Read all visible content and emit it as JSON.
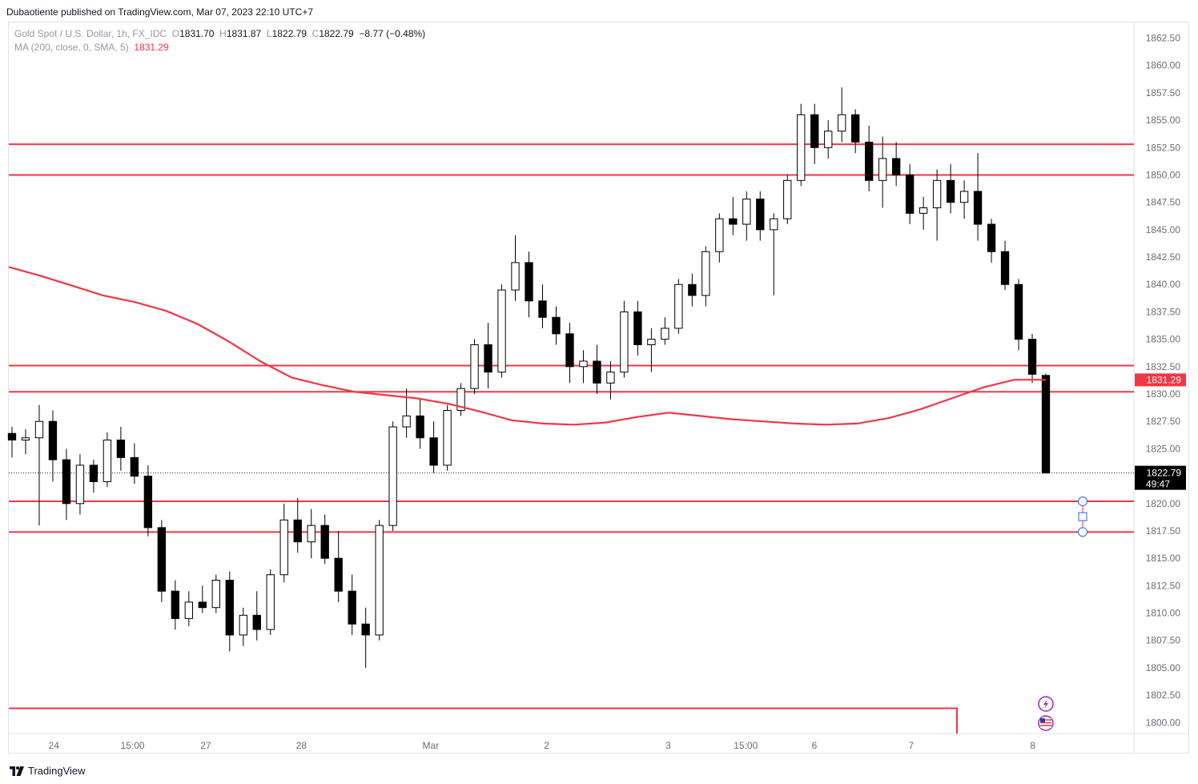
{
  "publisher_line": "Dubaotiente published on TradingView.com, Mar 07, 2023 22:10 UTC+7",
  "legend": {
    "symbol": "Gold Spot / U.S. Dollar, 1h, FX_IDC",
    "open_label": "O",
    "open": "1831.70",
    "high_label": "H",
    "high": "1831.87",
    "low_label": "L",
    "low": "1822.79",
    "close_label": "C",
    "close": "1822.79",
    "change": "−8.77 (−0.48%)",
    "ma_label": "MA (200, close, 0, SMA, 5)",
    "ma_value": "1831.29"
  },
  "footer_brand": "TradingView",
  "colors": {
    "up": "#ffffff",
    "down": "#000000",
    "wick": "#000000",
    "ma": "#f23645",
    "level": "#f23645",
    "axis_text": "#6a6d78"
  },
  "chart_data": {
    "type": "candlestick",
    "title": "Gold Spot / U.S. Dollar, 1h, FX_IDC",
    "ylim": [
      1799,
      1864
    ],
    "y_ticks": [
      "1862.50",
      "1860.00",
      "1857.50",
      "1855.00",
      "1852.50",
      "1850.00",
      "1847.50",
      "1845.00",
      "1842.50",
      "1840.00",
      "1837.50",
      "1835.00",
      "1832.50",
      "1830.00",
      "1827.50",
      "1825.00",
      "1822.50",
      "1820.00",
      "1817.50",
      "1815.00",
      "1812.50",
      "1810.00",
      "1807.50",
      "1805.00",
      "1802.50",
      "1800.00"
    ],
    "x_ticks": [
      "24",
      "15:00",
      "27",
      "28",
      "Mar",
      "2",
      "3",
      "15:00",
      "6",
      "7",
      "8"
    ],
    "x_tick_fracs": [
      0.04,
      0.11,
      0.175,
      0.26,
      0.375,
      0.478,
      0.586,
      0.655,
      0.716,
      0.802,
      0.91
    ],
    "horizontal_levels": [
      1852.8,
      1850.0,
      1832.6,
      1830.2,
      1820.2,
      1817.4
    ],
    "box_level_top": 1801.3,
    "current_price": "1822.79",
    "countdown": "49:47",
    "ma_value": "1831.29",
    "ma_series": [
      1841.6,
      1840.8,
      1839.9,
      1839.0,
      1838.4,
      1837.6,
      1836.4,
      1834.8,
      1833.0,
      1831.5,
      1830.8,
      1830.2,
      1829.9,
      1829.6,
      1829.1,
      1828.4,
      1827.6,
      1827.3,
      1827.2,
      1827.4,
      1827.9,
      1828.3,
      1828.0,
      1827.7,
      1827.5,
      1827.3,
      1827.2,
      1827.3,
      1827.8,
      1828.6,
      1829.6,
      1830.6,
      1831.3,
      1831.3
    ],
    "candles": [
      [
        1826.4,
        1827.0,
        1824.2,
        1825.8
      ],
      [
        1825.8,
        1826.8,
        1824.5,
        1826.0
      ],
      [
        1826.0,
        1829.0,
        1818.0,
        1827.5
      ],
      [
        1827.5,
        1828.5,
        1822.0,
        1824.0
      ],
      [
        1824.0,
        1825.0,
        1818.5,
        1820.0
      ],
      [
        1820.0,
        1824.5,
        1819.0,
        1823.5
      ],
      [
        1823.5,
        1824.0,
        1821.0,
        1822.0
      ],
      [
        1822.0,
        1826.5,
        1821.5,
        1825.8
      ],
      [
        1825.8,
        1827.0,
        1823.0,
        1824.2
      ],
      [
        1824.2,
        1825.5,
        1821.8,
        1822.5
      ],
      [
        1822.5,
        1823.5,
        1817.0,
        1817.8
      ],
      [
        1817.8,
        1818.5,
        1811.0,
        1812.0
      ],
      [
        1812.0,
        1813.0,
        1808.5,
        1809.5
      ],
      [
        1809.5,
        1812.0,
        1808.8,
        1811.0
      ],
      [
        1811.0,
        1812.5,
        1810.0,
        1810.5
      ],
      [
        1810.5,
        1813.5,
        1810.0,
        1813.0
      ],
      [
        1813.0,
        1813.8,
        1806.5,
        1808.0
      ],
      [
        1808.0,
        1810.5,
        1807.0,
        1809.8
      ],
      [
        1809.8,
        1812.0,
        1807.5,
        1808.5
      ],
      [
        1808.5,
        1814.0,
        1808.0,
        1813.5
      ],
      [
        1813.5,
        1820.0,
        1812.8,
        1818.5
      ],
      [
        1818.5,
        1820.5,
        1815.5,
        1816.5
      ],
      [
        1816.5,
        1819.5,
        1815.0,
        1818.0
      ],
      [
        1818.0,
        1819.0,
        1814.5,
        1815.0
      ],
      [
        1815.0,
        1817.5,
        1811.0,
        1812.0
      ],
      [
        1812.0,
        1813.5,
        1808.0,
        1809.0
      ],
      [
        1809.0,
        1810.5,
        1805.0,
        1808.0
      ],
      [
        1808.0,
        1818.5,
        1807.5,
        1818.0
      ],
      [
        1818.0,
        1827.5,
        1817.5,
        1827.0
      ],
      [
        1827.0,
        1830.5,
        1826.0,
        1828.0
      ],
      [
        1828.0,
        1829.5,
        1825.0,
        1826.0
      ],
      [
        1826.0,
        1827.5,
        1822.8,
        1823.5
      ],
      [
        1823.5,
        1829.0,
        1823.0,
        1828.5
      ],
      [
        1828.5,
        1831.0,
        1828.0,
        1830.5
      ],
      [
        1830.5,
        1835.0,
        1830.0,
        1834.5
      ],
      [
        1834.5,
        1836.5,
        1830.5,
        1832.0
      ],
      [
        1832.0,
        1840.0,
        1831.5,
        1839.5
      ],
      [
        1839.5,
        1844.5,
        1838.5,
        1842.0
      ],
      [
        1842.0,
        1843.0,
        1837.0,
        1838.5
      ],
      [
        1838.5,
        1840.0,
        1836.0,
        1837.0
      ],
      [
        1837.0,
        1838.0,
        1834.5,
        1835.5
      ],
      [
        1835.5,
        1836.5,
        1831.0,
        1832.5
      ],
      [
        1832.5,
        1834.0,
        1831.0,
        1833.0
      ],
      [
        1833.0,
        1834.5,
        1830.0,
        1831.0
      ],
      [
        1831.0,
        1833.0,
        1829.5,
        1832.0
      ],
      [
        1832.0,
        1838.5,
        1831.5,
        1837.5
      ],
      [
        1837.5,
        1838.5,
        1833.5,
        1834.5
      ],
      [
        1834.5,
        1836.0,
        1832.0,
        1835.0
      ],
      [
        1835.0,
        1837.0,
        1834.5,
        1836.0
      ],
      [
        1836.0,
        1840.5,
        1835.5,
        1840.0
      ],
      [
        1840.0,
        1841.0,
        1838.0,
        1839.0
      ],
      [
        1839.0,
        1843.5,
        1838.0,
        1843.0
      ],
      [
        1843.0,
        1846.5,
        1842.0,
        1846.0
      ],
      [
        1846.0,
        1848.0,
        1844.5,
        1845.5
      ],
      [
        1845.5,
        1848.5,
        1844.0,
        1847.8
      ],
      [
        1847.8,
        1848.5,
        1844.0,
        1845.0
      ],
      [
        1845.0,
        1846.5,
        1839.0,
        1846.0
      ],
      [
        1846.0,
        1850.0,
        1845.5,
        1849.5
      ],
      [
        1849.5,
        1856.5,
        1849.0,
        1855.5
      ],
      [
        1855.5,
        1856.5,
        1851.0,
        1852.5
      ],
      [
        1852.5,
        1855.0,
        1851.5,
        1854.0
      ],
      [
        1854.0,
        1858.0,
        1853.0,
        1855.5
      ],
      [
        1855.5,
        1856.0,
        1852.0,
        1853.0
      ],
      [
        1853.0,
        1854.5,
        1848.5,
        1849.5
      ],
      [
        1849.5,
        1853.5,
        1847.0,
        1851.5
      ],
      [
        1851.5,
        1853.0,
        1849.0,
        1850.0
      ],
      [
        1850.0,
        1851.0,
        1845.5,
        1846.5
      ],
      [
        1846.5,
        1848.0,
        1845.0,
        1847.0
      ],
      [
        1847.0,
        1850.5,
        1844.0,
        1849.5
      ],
      [
        1849.5,
        1851.0,
        1846.5,
        1847.5
      ],
      [
        1847.5,
        1849.5,
        1846.0,
        1848.5
      ],
      [
        1848.5,
        1852.0,
        1844.0,
        1845.5
      ],
      [
        1845.5,
        1846.0,
        1842.0,
        1843.0
      ],
      [
        1843.0,
        1844.0,
        1839.5,
        1840.0
      ],
      [
        1840.0,
        1840.5,
        1834.0,
        1835.0
      ],
      [
        1835.0,
        1835.5,
        1831.0,
        1831.8
      ],
      [
        1831.7,
        1831.87,
        1822.79,
        1822.79
      ]
    ]
  }
}
